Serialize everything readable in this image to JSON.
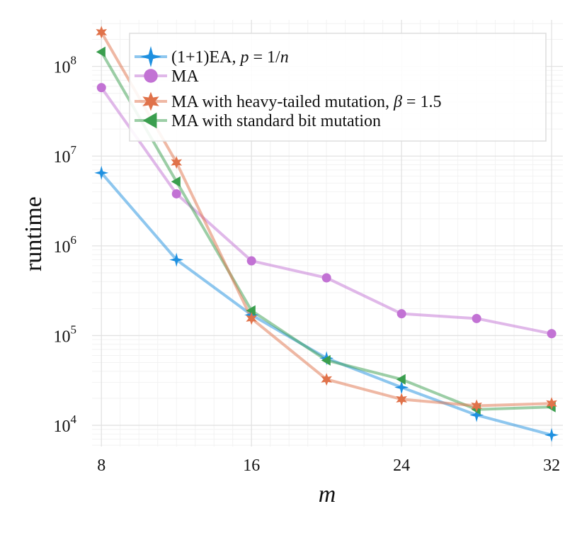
{
  "chart_data": {
    "type": "line",
    "title": "",
    "xlabel": "m",
    "ylabel": "runtime",
    "xscale": "linear",
    "yscale": "log",
    "xlim": [
      7.5,
      32.6
    ],
    "ylim": [
      5800,
      330000000
    ],
    "xticks": [
      8,
      16,
      24,
      32
    ],
    "xtick_labels": [
      "8",
      "16",
      "24",
      "32"
    ],
    "yticks": [
      10000,
      100000,
      1000000,
      10000000,
      100000000
    ],
    "ytick_labels": [
      {
        "base": "10",
        "exp": "4"
      },
      {
        "base": "10",
        "exp": "5"
      },
      {
        "base": "10",
        "exp": "6"
      },
      {
        "base": "10",
        "exp": "7"
      },
      {
        "base": "10",
        "exp": "8"
      }
    ],
    "grid": true,
    "legend_position": "top-right",
    "series": [
      {
        "name_parts": [
          "(1+1)EA, ",
          "p",
          " = 1/",
          "n"
        ],
        "marker": "star4",
        "color": "#1e90e0",
        "x": [
          8,
          12,
          16,
          20,
          24,
          28,
          32
        ],
        "values": [
          6500000,
          700000,
          170000,
          56000,
          26500,
          13000,
          7800
        ]
      },
      {
        "name_parts": [
          "MA"
        ],
        "marker": "circle",
        "color": "#c272d4",
        "x": [
          8,
          12,
          16,
          20,
          24,
          28,
          32
        ],
        "values": [
          58000000,
          3800000,
          680000,
          440000,
          175000,
          155000,
          105000
        ]
      },
      {
        "name_parts": [
          "MA with heavy-tailed mutation, ",
          "β",
          " = 1.5"
        ],
        "marker": "star6",
        "color": "#e0724a",
        "x": [
          8,
          12,
          16,
          20,
          24,
          28,
          32
        ],
        "values": [
          240000000,
          8500000,
          155000,
          32500,
          19500,
          16500,
          17500
        ]
      },
      {
        "name_parts": [
          "MA with standard bit mutation"
        ],
        "marker": "triangle-left",
        "color": "#3a9e4e",
        "x": [
          8,
          12,
          16,
          20,
          24,
          28,
          32
        ],
        "values": [
          145000000,
          5200000,
          190000,
          53000,
          32500,
          15000,
          16000
        ]
      }
    ]
  }
}
